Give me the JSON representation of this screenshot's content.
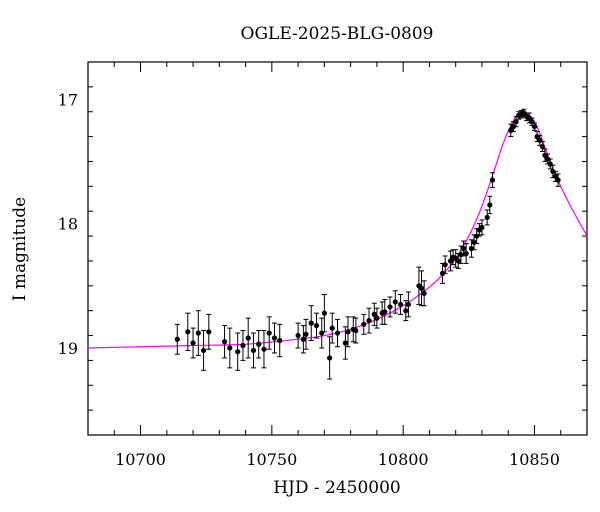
{
  "chart_data": {
    "type": "scatter",
    "title": "OGLE-2025-BLG-0809",
    "xlabel": "HJD - 2450000",
    "ylabel": "I magnitude",
    "xlim": [
      10680,
      10870
    ],
    "ylim": [
      19.7,
      16.7
    ],
    "y_inverted": true,
    "grid": false,
    "xticks": [
      10700,
      10750,
      10800,
      10850
    ],
    "xtick_labels": [
      "10700",
      "10750",
      "10800",
      "10850"
    ],
    "yticks": [
      17,
      18,
      19
    ],
    "ytick_labels": [
      "17",
      "18",
      "19"
    ],
    "colors": {
      "data": "#000000",
      "model": "#ff00ff"
    },
    "series": [
      {
        "kind": "points_with_errors",
        "x": [
          10714,
          10718,
          10720,
          10722,
          10724,
          10726,
          10732,
          10734,
          10737,
          10739,
          10741,
          10743,
          10745,
          10747,
          10749,
          10751,
          10753,
          10760,
          10762,
          10763,
          10765,
          10767,
          10769,
          10770,
          10772,
          10773,
          10775,
          10778,
          10779,
          10781,
          10782,
          10785,
          10787,
          10789,
          10790,
          10792,
          10793,
          10795,
          10797,
          10799,
          10801,
          10802,
          10806,
          10807,
          10808,
          10815,
          10816,
          10818,
          10819,
          10820,
          10821,
          10822,
          10823,
          10824,
          10826,
          10827,
          10828,
          10829,
          10830,
          10832,
          10833,
          10834,
          10841,
          10842,
          10843,
          10844,
          10845,
          10846,
          10847,
          10848,
          10849,
          10850,
          10851,
          10852,
          10853,
          10854,
          10855,
          10856,
          10857,
          10858,
          10859
        ],
        "y": [
          18.93,
          18.87,
          18.96,
          18.88,
          19.02,
          18.87,
          18.95,
          19.0,
          19.03,
          18.98,
          18.92,
          19.02,
          18.97,
          19.01,
          18.88,
          18.92,
          18.94,
          18.9,
          18.93,
          18.89,
          18.8,
          18.82,
          18.88,
          18.72,
          19.08,
          18.84,
          18.88,
          18.96,
          18.87,
          18.85,
          18.86,
          18.81,
          18.78,
          18.73,
          18.76,
          18.72,
          18.71,
          18.67,
          18.63,
          18.65,
          18.7,
          18.65,
          18.5,
          18.52,
          18.56,
          18.4,
          18.33,
          18.3,
          18.27,
          18.28,
          18.3,
          18.25,
          18.2,
          18.24,
          18.2,
          18.15,
          18.1,
          18.05,
          18.03,
          17.95,
          17.85,
          17.65,
          17.25,
          17.22,
          17.18,
          17.13,
          17.12,
          17.11,
          17.14,
          17.15,
          17.18,
          17.22,
          17.3,
          17.33,
          17.38,
          17.45,
          17.48,
          17.52,
          17.58,
          17.62,
          17.65
        ],
        "errors": [
          0.12,
          0.15,
          0.12,
          0.18,
          0.16,
          0.14,
          0.13,
          0.16,
          0.15,
          0.12,
          0.16,
          0.14,
          0.11,
          0.15,
          0.13,
          0.12,
          0.13,
          0.1,
          0.11,
          0.12,
          0.14,
          0.1,
          0.12,
          0.15,
          0.17,
          0.12,
          0.11,
          0.13,
          0.12,
          0.1,
          0.1,
          0.08,
          0.1,
          0.09,
          0.08,
          0.09,
          0.1,
          0.08,
          0.09,
          0.08,
          0.08,
          0.1,
          0.15,
          0.14,
          0.1,
          0.08,
          0.07,
          0.08,
          0.06,
          0.07,
          0.06,
          0.07,
          0.06,
          0.08,
          0.07,
          0.06,
          0.06,
          0.05,
          0.06,
          0.06,
          0.07,
          0.06,
          0.05,
          0.04,
          0.04,
          0.03,
          0.03,
          0.03,
          0.03,
          0.04,
          0.03,
          0.03,
          0.04,
          0.04,
          0.04,
          0.05,
          0.04,
          0.04,
          0.05,
          0.04,
          0.05
        ]
      },
      {
        "kind": "model_curve",
        "x": [
          10680,
          10700,
          10720,
          10740,
          10760,
          10770,
          10780,
          10790,
          10800,
          10810,
          10815,
          10820,
          10825,
          10830,
          10835,
          10838,
          10841,
          10843,
          10845,
          10846,
          10847,
          10849,
          10851,
          10853,
          10855,
          10857,
          10860,
          10864,
          10870
        ],
        "y": [
          19.0,
          18.99,
          18.98,
          18.97,
          18.93,
          18.9,
          18.85,
          18.77,
          18.66,
          18.51,
          18.41,
          18.28,
          18.1,
          17.86,
          17.55,
          17.36,
          17.21,
          17.14,
          17.11,
          17.1,
          17.11,
          17.15,
          17.22,
          17.33,
          17.45,
          17.56,
          17.7,
          17.87,
          18.1
        ]
      }
    ]
  }
}
